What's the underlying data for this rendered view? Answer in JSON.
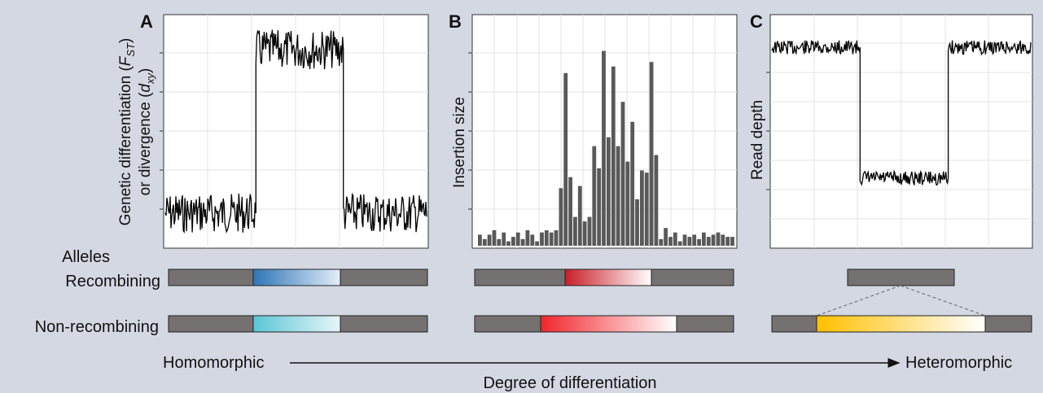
{
  "panels": {
    "a": {
      "letter": "A",
      "ylabel_line1_prefix": "Genetic differentiation (",
      "ylabel_line1_var": "F",
      "ylabel_line1_sub": "ST",
      "ylabel_line1_suffix": ")",
      "ylabel_line2_prefix": "or divergence (",
      "ylabel_line2_var": "d",
      "ylabel_line2_sub": "xy",
      "ylabel_line2_suffix": ")"
    },
    "b": {
      "letter": "B",
      "ylabel": "Insertion size"
    },
    "c": {
      "letter": "C",
      "ylabel": "Read depth"
    }
  },
  "rows": {
    "alleles_label": "Alleles",
    "recombining_label": "Recombining",
    "nonrecombining_label": "Non-recombining"
  },
  "axis": {
    "left_label": "Homomorphic",
    "right_label": "Heteromorphic",
    "title": "Degree of differentiation"
  },
  "colors": {
    "segment_grey": "#767171",
    "panel_a_recombining": "#2e75b6",
    "panel_a_nonrecombining": "#5bc6d6",
    "panel_b_recombining": "#c81e28",
    "panel_b_nonrecombining": "#f0262c",
    "panel_c_nonrecombining": "#ffc000",
    "bar_grey": "#595959",
    "background": "#d3d8e3"
  },
  "chart_data": [
    {
      "type": "line",
      "panel": "A",
      "description_levels": {
        "low": 0.15,
        "high": 0.85
      },
      "segments": [
        {
          "from": 0.0,
          "to": 0.345,
          "level": "low"
        },
        {
          "from": 0.345,
          "to": 0.68,
          "level": "high"
        },
        {
          "from": 0.68,
          "to": 1.0,
          "level": "low"
        }
      ],
      "ylim": [
        0,
        1
      ],
      "xlim": [
        0,
        1
      ]
    },
    {
      "type": "bar",
      "panel": "B",
      "values": [
        0.05,
        0.03,
        0.05,
        0.07,
        0.03,
        0.06,
        0.02,
        0.04,
        0.06,
        0.03,
        0.07,
        0.05,
        0.02,
        0.06,
        0.07,
        0.06,
        0.07,
        0.26,
        0.78,
        0.31,
        0.13,
        0.27,
        0.11,
        0.13,
        0.45,
        0.35,
        0.88,
        0.49,
        0.81,
        0.45,
        0.65,
        0.38,
        0.56,
        0.21,
        0.34,
        0.33,
        0.83,
        0.41,
        0.03,
        0.08,
        0.04,
        0.06,
        0.02,
        0.05,
        0.04,
        0.05,
        0.03,
        0.06,
        0.04,
        0.05,
        0.06,
        0.05,
        0.04,
        0.04
      ],
      "ylim": [
        0,
        1
      ]
    },
    {
      "type": "line",
      "panel": "C",
      "description_levels": {
        "high": 0.86,
        "low": 0.3
      },
      "segments": [
        {
          "from": 0.0,
          "to": 0.34,
          "level": "high"
        },
        {
          "from": 0.34,
          "to": 0.68,
          "level": "low"
        },
        {
          "from": 0.68,
          "to": 1.0,
          "level": "high"
        }
      ],
      "ylim": [
        0,
        1
      ],
      "xlim": [
        0,
        1
      ]
    }
  ]
}
